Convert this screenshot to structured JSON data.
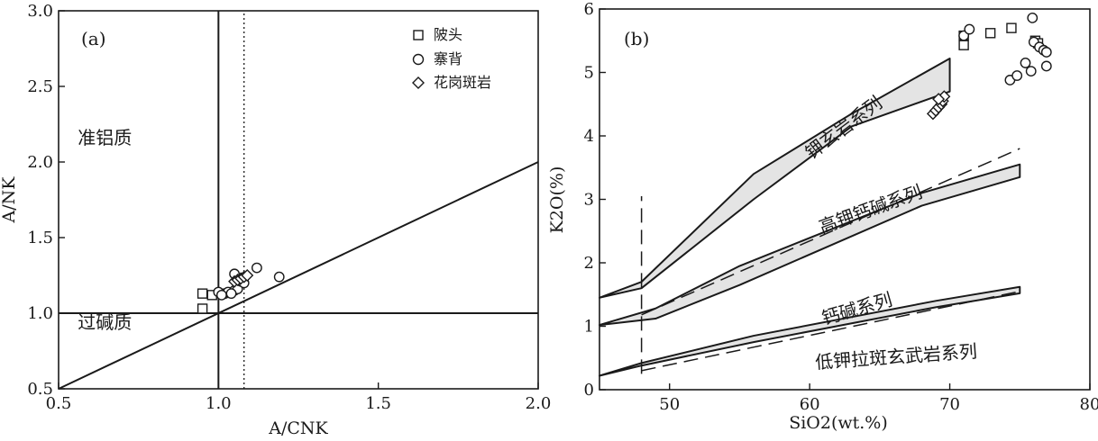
{
  "chart_data": [
    {
      "type": "scatter",
      "panel_label": "(a)",
      "xlabel": "A/CNK",
      "ylabel": "A/NK",
      "xlim": [
        0.5,
        2.0
      ],
      "ylim": [
        0.5,
        3.0
      ],
      "xticks": [
        0.5,
        1.0,
        1.5,
        2.0
      ],
      "xtick_labels": [
        "0.5",
        "1.0",
        "1.5",
        "2.0"
      ],
      "yticks": [
        0.5,
        1.0,
        1.5,
        2.0,
        2.5,
        3.0
      ],
      "ytick_labels": [
        "0.5",
        "1.0",
        "1.5",
        "2.0",
        "2.5",
        "3.0"
      ],
      "fields": [
        {
          "label": "准铝质",
          "at": [
            0.56,
            2.12
          ]
        },
        {
          "label": "过碱质",
          "at": [
            0.56,
            0.9
          ]
        }
      ],
      "lines": [
        {
          "kind": "solid",
          "points": [
            [
              1.0,
              0.5
            ],
            [
              1.0,
              3.0
            ]
          ]
        },
        {
          "kind": "solid",
          "points": [
            [
              0.5,
              1.0
            ],
            [
              2.0,
              1.0
            ]
          ]
        },
        {
          "kind": "solid",
          "points": [
            [
              0.5,
              0.5
            ],
            [
              2.0,
              2.0
            ]
          ]
        },
        {
          "kind": "dotted",
          "points": [
            [
              1.08,
              0.5
            ],
            [
              1.08,
              3.0
            ]
          ]
        }
      ],
      "legend": [
        {
          "label": "陂头",
          "marker": "square"
        },
        {
          "label": "寨背",
          "marker": "circle"
        },
        {
          "label": "花岗斑岩",
          "marker": "diamond"
        }
      ],
      "series": [
        {
          "name": "陂头",
          "marker": "square",
          "x": [
            0.95,
            0.98,
            0.95
          ],
          "y": [
            1.13,
            1.12,
            1.03
          ]
        },
        {
          "name": "寨背",
          "marker": "circle",
          "x": [
            1.0,
            1.02,
            1.03,
            1.05,
            1.06,
            1.07,
            1.05,
            1.08,
            1.12,
            1.19,
            1.04,
            1.01
          ],
          "y": [
            1.14,
            1.13,
            1.14,
            1.15,
            1.16,
            1.21,
            1.26,
            1.2,
            1.3,
            1.24,
            1.13,
            1.12
          ]
        },
        {
          "name": "花岗斑岩",
          "marker": "diamond",
          "x": [
            1.05,
            1.06,
            1.07,
            1.08,
            1.09
          ],
          "y": [
            1.21,
            1.22,
            1.23,
            1.24,
            1.25
          ]
        }
      ]
    },
    {
      "type": "scatter",
      "panel_label": "(b)",
      "xlabel": "SiO2(wt.%)",
      "ylabel": "K2O(%)",
      "xlim": [
        45,
        80
      ],
      "ylim": [
        0,
        6
      ],
      "xticks": [
        50,
        60,
        70,
        80
      ],
      "xtick_labels": [
        "50",
        "60",
        "70",
        "80"
      ],
      "yticks": [
        0,
        1,
        2,
        3,
        4,
        5,
        6
      ],
      "ytick_labels": [
        "0",
        "1",
        "2",
        "3",
        "4",
        "5",
        "6"
      ],
      "bands": [
        {
          "label": "钾玄岩系列",
          "upper": [
            [
              45,
              1.45
            ],
            [
              48,
              1.7
            ],
            [
              56,
              3.4
            ],
            [
              63,
              4.35
            ],
            [
              70,
              5.22
            ]
          ],
          "lower": [
            [
              45,
              1.45
            ],
            [
              48,
              1.6
            ],
            [
              56,
              3.0
            ],
            [
              63,
              4.15
            ],
            [
              70,
              4.7
            ]
          ]
        },
        {
          "label": "高钾钙碱系列",
          "upper": [
            [
              45,
              1.02
            ],
            [
              49,
              1.28
            ],
            [
              55,
              1.95
            ],
            [
              68,
              3.1
            ],
            [
              75,
              3.55
            ]
          ],
          "lower": [
            [
              45,
              1.02
            ],
            [
              49,
              1.12
            ],
            [
              55,
              1.65
            ],
            [
              68,
              2.9
            ],
            [
              75,
              3.35
            ]
          ]
        },
        {
          "label": "钙碱系列",
          "upper": [
            [
              45,
              0.22
            ],
            [
              48,
              0.42
            ],
            [
              56,
              0.85
            ],
            [
              69,
              1.4
            ],
            [
              75,
              1.62
            ]
          ],
          "lower": [
            [
              45,
              0.22
            ],
            [
              48,
              0.38
            ],
            [
              56,
              0.75
            ],
            [
              69,
              1.3
            ],
            [
              75,
              1.52
            ]
          ]
        }
      ],
      "dashed_lines": [
        {
          "points": [
            [
              48,
              1.18
            ],
            [
              75,
              3.8
            ]
          ]
        },
        {
          "points": [
            [
              48,
              0.3
            ],
            [
              75,
              1.55
            ]
          ]
        },
        {
          "points": [
            [
              48,
              0.25
            ],
            [
              48,
              3.05
            ]
          ]
        }
      ],
      "band_labels": [
        {
          "label": "钾玄岩系列",
          "at": [
            62.7,
            4.05
          ],
          "angle": -37
        },
        {
          "label": "高钾钙碱系列",
          "at": [
            64.5,
            2.75
          ],
          "angle": -20
        },
        {
          "label": "钙碱系列",
          "at": [
            63.5,
            1.18
          ],
          "angle": -16
        },
        {
          "label": "低钾拉斑玄武岩系列",
          "at": [
            66.2,
            0.42
          ],
          "angle": -4
        }
      ],
      "series": [
        {
          "name": "陂头",
          "marker": "square",
          "x": [
            71.0,
            72.9,
            74.4,
            76.1,
            76.3,
            71.0
          ],
          "y": [
            5.58,
            5.62,
            5.7,
            5.5,
            5.46,
            5.43
          ]
        },
        {
          "name": "寨背",
          "marker": "circle",
          "x": [
            71.0,
            71.4,
            74.3,
            74.8,
            75.4,
            75.8,
            76.0,
            76.4,
            76.7,
            76.9,
            76.9,
            75.9
          ],
          "y": [
            5.58,
            5.68,
            4.88,
            4.95,
            5.15,
            5.02,
            5.48,
            5.4,
            5.35,
            5.1,
            5.32,
            5.86
          ]
        },
        {
          "name": "花岗斑岩",
          "marker": "diamond",
          "x": [
            68.8,
            69.0,
            69.2,
            69.4,
            69.5,
            69.6,
            69.2
          ],
          "y": [
            4.35,
            4.4,
            4.45,
            4.5,
            4.55,
            4.62,
            4.58
          ]
        }
      ]
    }
  ]
}
